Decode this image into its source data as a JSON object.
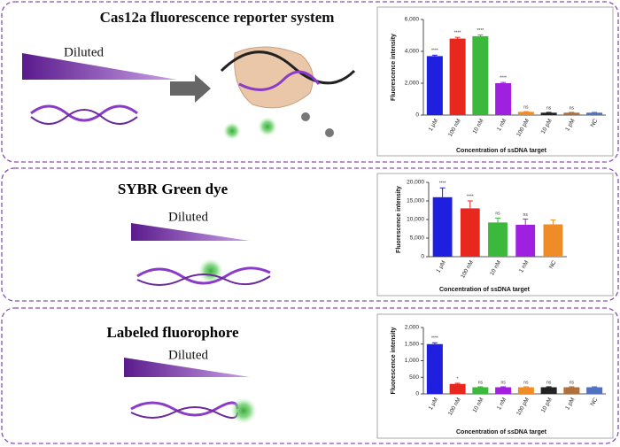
{
  "panels": [
    {
      "title": "Cas12a fluorescence reporter system",
      "diluted": "Diluted"
    },
    {
      "title": "SYBR Green dye",
      "diluted": "Diluted"
    },
    {
      "title": "Labeled fluorophore",
      "diluted": "Diluted"
    }
  ],
  "chart_data": [
    {
      "type": "bar",
      "ylabel": "Fluorescence intensity",
      "xlabel": "Concentration of ssDNA target",
      "categories": [
        "1 μM",
        "100 nM",
        "10 nM",
        "1 nM",
        "100 pM",
        "10 pM",
        "1 pM",
        "NC"
      ],
      "values": [
        3700,
        4800,
        4950,
        2000,
        200,
        150,
        150,
        150
      ],
      "errors": [
        60,
        80,
        80,
        50,
        20,
        20,
        20,
        20
      ],
      "colors": [
        "#1f1fe0",
        "#e8281e",
        "#3cb83c",
        "#a020e0",
        "#f08c28",
        "#222222",
        "#b0703c",
        "#5070c0"
      ],
      "annotations": [
        "****",
        "****",
        "****",
        "****",
        "ns",
        "ns",
        "ns",
        null
      ],
      "ylim": [
        0,
        6000
      ],
      "yticks": [
        0,
        {
          "value": 2000,
          "label": "2,000"
        },
        {
          "value": 4000,
          "label": "4,000"
        },
        {
          "value": 6000,
          "label": "6,000"
        }
      ]
    },
    {
      "type": "bar",
      "ylabel": "Fluorescence intensity",
      "xlabel": "Concentration of ssDNA target",
      "categories": [
        "1 μM",
        "100 nM",
        "10 nM",
        "1 nM",
        "NC"
      ],
      "values": [
        16000,
        13000,
        9200,
        8600,
        8700
      ],
      "errors": [
        2500,
        2000,
        1200,
        1500,
        1200
      ],
      "colors": [
        "#1f1fe0",
        "#e8281e",
        "#3cb83c",
        "#a020e0",
        "#f08c28"
      ],
      "annotations": [
        "****",
        "****",
        "ns",
        "ns",
        null
      ],
      "ylim": [
        0,
        20000
      ],
      "yticks": [
        0,
        {
          "value": 5000,
          "label": "5,000"
        },
        {
          "value": 10000,
          "label": "10,000"
        },
        {
          "value": 15000,
          "label": "15,000"
        },
        {
          "value": 20000,
          "label": "20,000"
        }
      ]
    },
    {
      "type": "bar",
      "ylabel": "Fluorescence intensity",
      "xlabel": "Concentration of ssDNA target",
      "categories": [
        "1 μM",
        "100 nM",
        "10 nM",
        "1 nM",
        "100 pM",
        "10 pM",
        "1 pM",
        "NC"
      ],
      "values": [
        1500,
        300,
        200,
        200,
        200,
        200,
        200,
        200
      ],
      "errors": [
        40,
        20,
        15,
        15,
        15,
        15,
        15,
        15
      ],
      "colors": [
        "#1f1fe0",
        "#e8281e",
        "#3cb83c",
        "#a020e0",
        "#f08c28",
        "#222222",
        "#b0703c",
        "#5070c0"
      ],
      "annotations": [
        "****",
        "*",
        "ns",
        "ns",
        "ns",
        "ns",
        "ns",
        null
      ],
      "ylim": [
        0,
        2000
      ],
      "yticks": [
        0,
        500,
        {
          "value": 1000,
          "label": "1,000"
        },
        {
          "value": 1500,
          "label": "1,500"
        },
        {
          "value": 2000,
          "label": "2,000"
        }
      ]
    }
  ]
}
